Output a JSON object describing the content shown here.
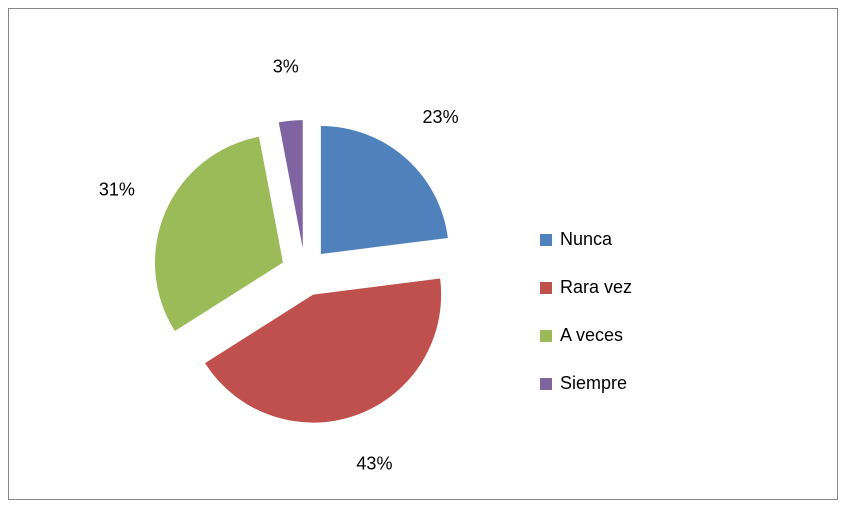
{
  "chart_data": {
    "type": "pie",
    "categories": [
      "Nunca",
      "Rara vez",
      "A veces",
      "Siempre"
    ],
    "values": [
      23,
      43,
      31,
      3
    ],
    "value_labels": [
      "23%",
      "43%",
      "31%",
      "3%"
    ],
    "colors": [
      "#4f81bd",
      "#c0504d",
      "#9bbb59",
      "#8064a2"
    ],
    "legend": "right"
  }
}
